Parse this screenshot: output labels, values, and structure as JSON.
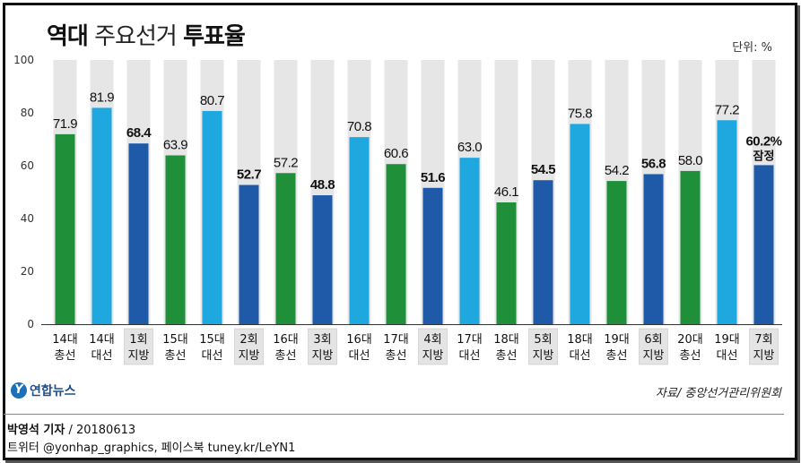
{
  "title": {
    "bold_prefix": "역대",
    "light": " 주요선거 ",
    "bold_suffix": "투표율"
  },
  "unit": "단위: %",
  "logo": {
    "mark": "Y",
    "name": "연합뉴스"
  },
  "source": "자료/ 중앙선거관리위원회",
  "reporter": {
    "name": "박영석 기자",
    "date": " / 20180613"
  },
  "social": "트위터 @yonhap_graphics, 페이스북 tuney.kr/LeYN1",
  "colors": {
    "총선": "#1f8f3a",
    "대선": "#1fa7e0",
    "지방": "#1e5aa8",
    "band": "#e6e6e6",
    "highlight_label_bg": "#e4e4e4"
  },
  "chart_data": {
    "type": "bar",
    "ylim": [
      0,
      100
    ],
    "yticks": [
      0,
      20,
      40,
      60,
      80,
      100
    ],
    "grid": false,
    "categories": [
      {
        "line1": "14대",
        "line2": "총선",
        "kind": "총선",
        "value": 71.9,
        "label": "71.9",
        "bold": false,
        "highlight": false
      },
      {
        "line1": "14대",
        "line2": "대선",
        "kind": "대선",
        "value": 81.9,
        "label": "81.9",
        "bold": false,
        "highlight": false
      },
      {
        "line1": "1회",
        "line2": "지방",
        "kind": "지방",
        "value": 68.4,
        "label": "68.4",
        "bold": true,
        "highlight": true
      },
      {
        "line1": "15대",
        "line2": "총선",
        "kind": "총선",
        "value": 63.9,
        "label": "63.9",
        "bold": false,
        "highlight": false
      },
      {
        "line1": "15대",
        "line2": "대선",
        "kind": "대선",
        "value": 80.7,
        "label": "80.7",
        "bold": false,
        "highlight": false
      },
      {
        "line1": "2회",
        "line2": "지방",
        "kind": "지방",
        "value": 52.7,
        "label": "52.7",
        "bold": true,
        "highlight": true
      },
      {
        "line1": "16대",
        "line2": "총선",
        "kind": "총선",
        "value": 57.2,
        "label": "57.2",
        "bold": false,
        "highlight": false
      },
      {
        "line1": "3회",
        "line2": "지방",
        "kind": "지방",
        "value": 48.8,
        "label": "48.8",
        "bold": true,
        "highlight": true
      },
      {
        "line1": "16대",
        "line2": "대선",
        "kind": "대선",
        "value": 70.8,
        "label": "70.8",
        "bold": false,
        "highlight": false
      },
      {
        "line1": "17대",
        "line2": "총선",
        "kind": "총선",
        "value": 60.6,
        "label": "60.6",
        "bold": false,
        "highlight": false
      },
      {
        "line1": "4회",
        "line2": "지방",
        "kind": "지방",
        "value": 51.6,
        "label": "51.6",
        "bold": true,
        "highlight": true
      },
      {
        "line1": "17대",
        "line2": "대선",
        "kind": "대선",
        "value": 63.0,
        "label": "63.0",
        "bold": false,
        "highlight": false
      },
      {
        "line1": "18대",
        "line2": "총선",
        "kind": "총선",
        "value": 46.1,
        "label": "46.1",
        "bold": false,
        "highlight": false
      },
      {
        "line1": "5회",
        "line2": "지방",
        "kind": "지방",
        "value": 54.5,
        "label": "54.5",
        "bold": true,
        "highlight": true
      },
      {
        "line1": "18대",
        "line2": "대선",
        "kind": "대선",
        "value": 75.8,
        "label": "75.8",
        "bold": false,
        "highlight": false
      },
      {
        "line1": "19대",
        "line2": "총선",
        "kind": "총선",
        "value": 54.2,
        "label": "54.2",
        "bold": false,
        "highlight": false
      },
      {
        "line1": "6회",
        "line2": "지방",
        "kind": "지방",
        "value": 56.8,
        "label": "56.8",
        "bold": true,
        "highlight": true
      },
      {
        "line1": "20대",
        "line2": "총선",
        "kind": "총선",
        "value": 58.0,
        "label": "58.0",
        "bold": false,
        "highlight": false
      },
      {
        "line1": "19대",
        "line2": "대선",
        "kind": "대선",
        "value": 77.2,
        "label": "77.2",
        "bold": false,
        "highlight": false
      },
      {
        "line1": "7회",
        "line2": "지방",
        "kind": "지방",
        "value": 60.2,
        "label": "60.2%",
        "sublabel": "잠정",
        "bold": true,
        "highlight": true
      }
    ]
  }
}
